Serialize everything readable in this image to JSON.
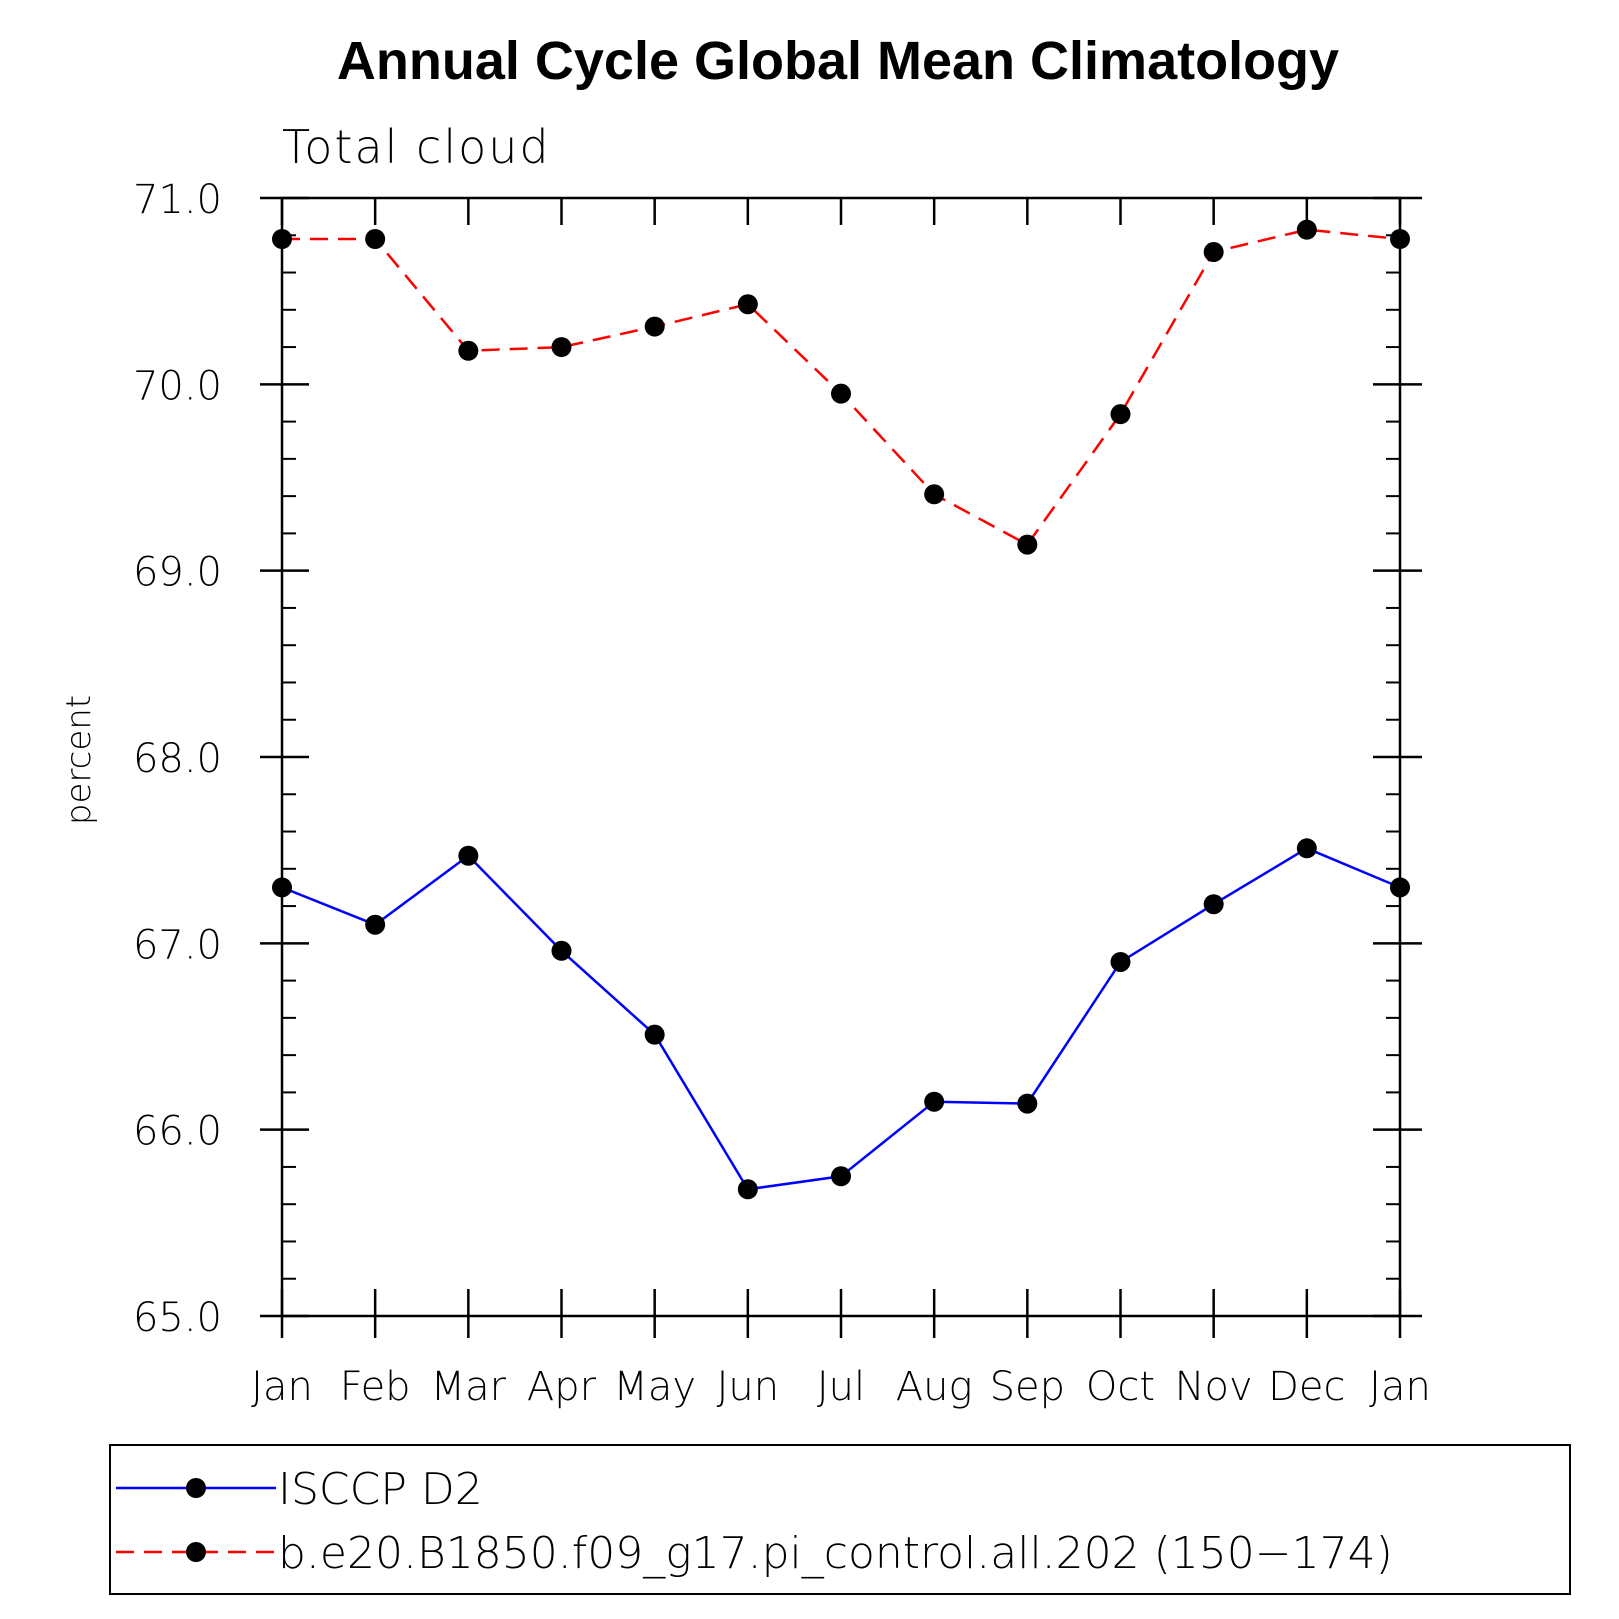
{
  "chart_data": {
    "type": "line",
    "title": "Annual Cycle Global Mean Climatology",
    "subtitle": "Total cloud",
    "xlabel": "",
    "ylabel": "percent",
    "categories": [
      "Jan",
      "Feb",
      "Mar",
      "Apr",
      "May",
      "Jun",
      "Jul",
      "Aug",
      "Sep",
      "Oct",
      "Nov",
      "Dec",
      "Jan"
    ],
    "ylim": [
      65.0,
      71.0
    ],
    "yticks": [
      "65.0",
      "66.0",
      "67.0",
      "68.0",
      "69.0",
      "70.0",
      "71.0"
    ],
    "grid": false,
    "legend_position": "bottom",
    "series": [
      {
        "name": "ISCCP D2",
        "color": "#0000ff",
        "line_style": "solid",
        "marker": "filled-circle",
        "values": [
          67.3,
          67.1,
          67.47,
          66.96,
          66.51,
          65.68,
          65.75,
          66.15,
          66.14,
          66.9,
          67.21,
          67.51,
          67.3
        ]
      },
      {
        "name": "b.e20.B1850.f09_g17.pi_control.all.202 (150−174)",
        "color": "#ff0000",
        "line_style": "dashed",
        "marker": "filled-circle",
        "values": [
          70.78,
          70.78,
          70.18,
          70.2,
          70.31,
          70.43,
          69.95,
          69.41,
          69.14,
          69.84,
          70.71,
          70.83,
          70.78
        ]
      }
    ]
  }
}
